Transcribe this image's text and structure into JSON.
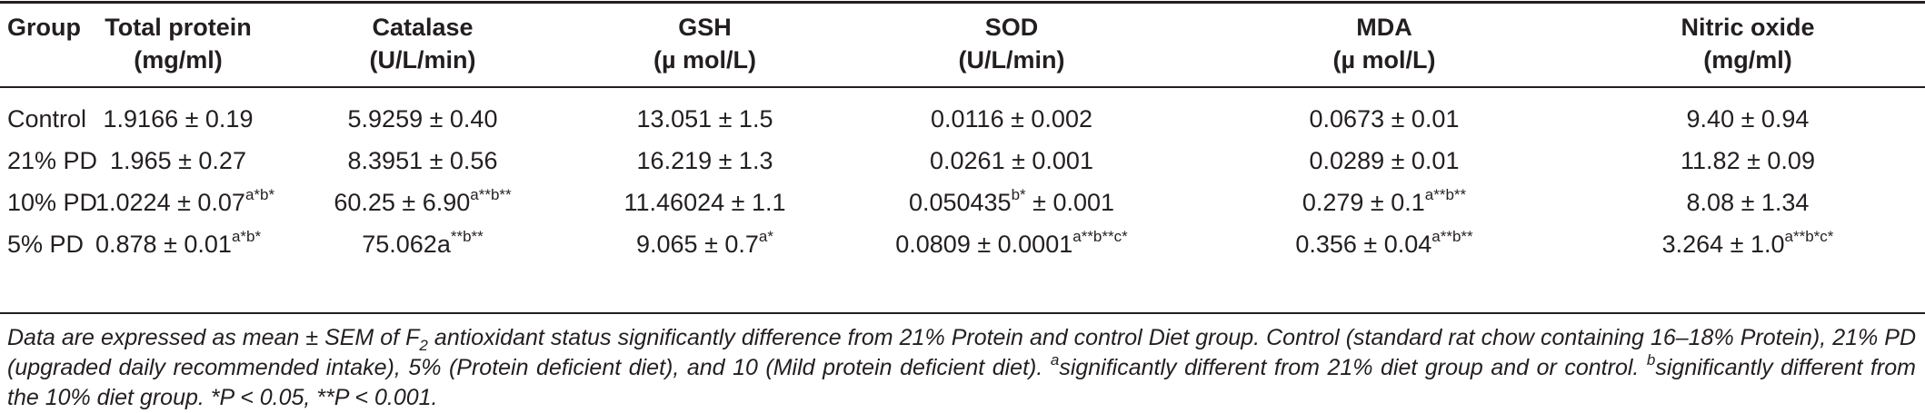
{
  "table": {
    "headers": [
      {
        "line1": "Group",
        "line2": ""
      },
      {
        "line1": "Total protein",
        "line2": "(mg/ml)"
      },
      {
        "line1": "Catalase",
        "line2": "(U/L/min)"
      },
      {
        "line1": "GSH",
        "line2": "(µ mol/L)"
      },
      {
        "line1": "SOD",
        "line2": "(U/L/min)"
      },
      {
        "line1": "MDA",
        "line2": "(µ mol/L)"
      },
      {
        "line1": "Nitric oxide",
        "line2": "(mg/ml)"
      }
    ],
    "rows": [
      {
        "group": "Control",
        "cells": [
          {
            "text": "1.9166 ± 0.19",
            "sup": ""
          },
          {
            "text": "5.9259 ± 0.40",
            "sup": ""
          },
          {
            "text": "13.051 ± 1.5",
            "sup": ""
          },
          {
            "text": "0.0116 ± 0.002",
            "sup": ""
          },
          {
            "text": "0.0673 ± 0.01",
            "sup": ""
          },
          {
            "text": "9.40 ± 0.94",
            "sup": ""
          }
        ]
      },
      {
        "group": "21% PD",
        "cells": [
          {
            "text": "1.965 ± 0.27",
            "sup": ""
          },
          {
            "text": "8.3951 ± 0.56",
            "sup": ""
          },
          {
            "text": "16.219 ± 1.3",
            "sup": ""
          },
          {
            "text": "0.0261 ± 0.001",
            "sup": ""
          },
          {
            "text": "0.0289 ± 0.01",
            "sup": ""
          },
          {
            "text": "11.82 ± 0.09",
            "sup": ""
          }
        ]
      },
      {
        "group": "10% PD",
        "cells": [
          {
            "text": "1.0224 ± 0.07",
            "sup": "a*b*"
          },
          {
            "text": "60.25 ± 6.90",
            "sup": "a**b**"
          },
          {
            "text": "11.46024 ± 1.1",
            "sup": ""
          },
          {
            "text": "0.050435",
            "sup": "b*",
            "text2": " ± 0.001"
          },
          {
            "text": "0.279 ± 0.1",
            "sup": "a**b**"
          },
          {
            "text": "8.08 ± 1.34",
            "sup": ""
          }
        ]
      },
      {
        "group": "5% PD",
        "cells": [
          {
            "text": "0.878 ± 0.01",
            "sup": "a*b*"
          },
          {
            "text": "75.062a",
            "sup": "**b**"
          },
          {
            "text": "9.065 ± 0.7",
            "sup": "a*"
          },
          {
            "text": "0.0809 ± 0.0001",
            "sup": "a**b**c*"
          },
          {
            "text": "0.356 ± 0.04",
            "sup": "a**b**"
          },
          {
            "text": "3.264 ± 1.0",
            "sup": "a**b*c*"
          }
        ]
      }
    ]
  },
  "footnote": {
    "p1": "Data are expressed as mean ± SEM of F",
    "p1_sub": "2",
    "p2": " antioxidant status significantly difference from 21% Protein and control Diet group. Control (standard rat chow containing 16–18% Protein), 21% PD (upgraded daily recommended intake), 5% (Protein deficient diet), and 10 (Mild protein deficient diet). ",
    "a_mark": "a",
    "a_text": "significantly different from 21% diet group and or control. ",
    "b_mark": "b",
    "b_text": "significantly different from the 10% diet group. *P < 0.05, **P < 0.001."
  }
}
